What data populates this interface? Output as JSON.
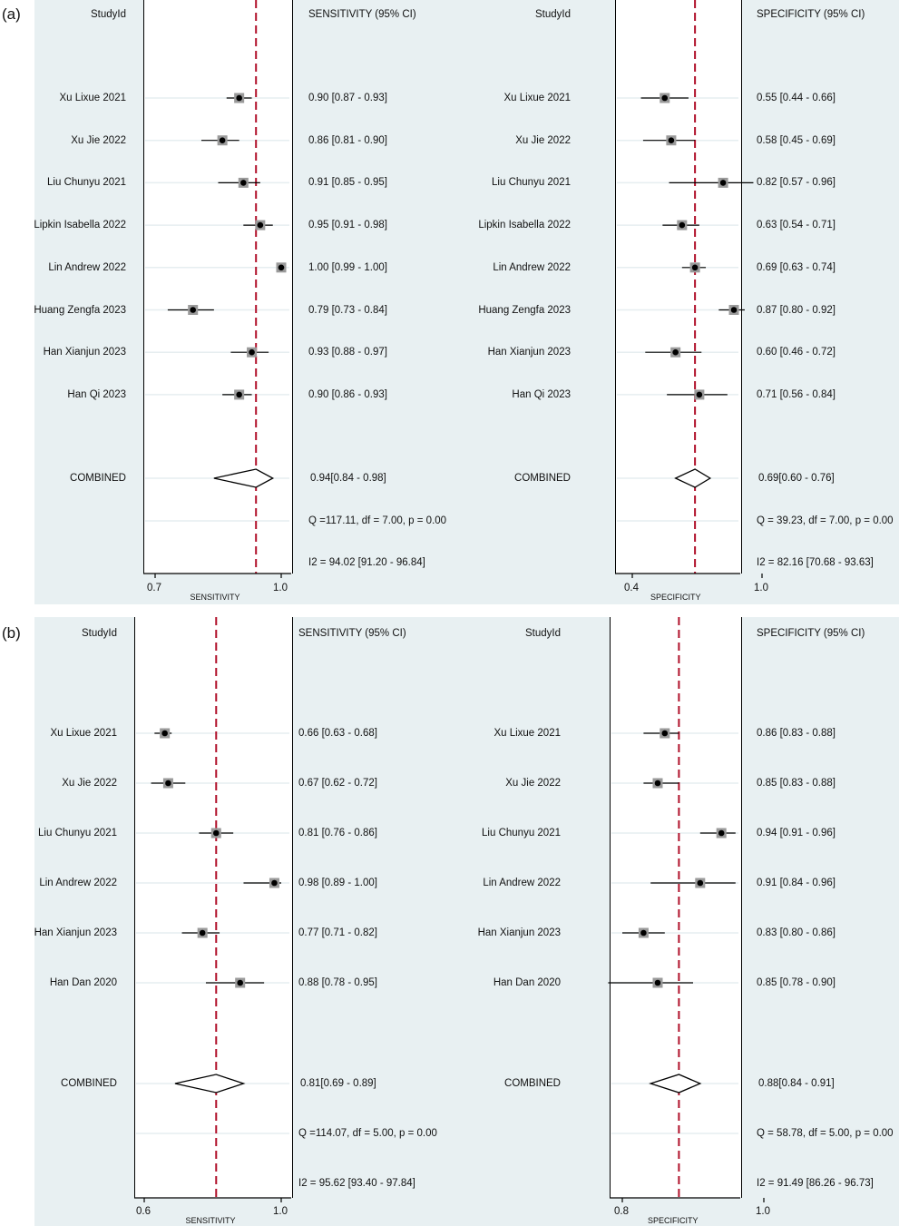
{
  "chart_data": [
    {
      "panel_label": "(a)",
      "type": "forest",
      "studyid_header": "StudyId",
      "plots": [
        {
          "metric_header": "SENSITIVITY (95% CI)",
          "xlabel": "SENSITIVITY",
          "xlim": [
            0.7,
            1.0
          ],
          "ticks": [
            "0.7",
            "1.0"
          ],
          "pooled": 0.94,
          "studies": [
            {
              "name": "Xu Lixue 2021",
              "est": 0.9,
              "lo": 0.87,
              "hi": 0.93,
              "text": "0.90 [0.87 - 0.93]"
            },
            {
              "name": "Xu Jie 2022",
              "est": 0.86,
              "lo": 0.81,
              "hi": 0.9,
              "text": "0.86 [0.81 - 0.90]"
            },
            {
              "name": "Liu Chunyu 2021",
              "est": 0.91,
              "lo": 0.85,
              "hi": 0.95,
              "text": "0.91 [0.85 - 0.95]"
            },
            {
              "name": "Lipkin Isabella 2022",
              "est": 0.95,
              "lo": 0.91,
              "hi": 0.98,
              "text": "0.95 [0.91 - 0.98]"
            },
            {
              "name": "Lin Andrew 2022",
              "est": 1.0,
              "lo": 0.99,
              "hi": 1.0,
              "text": "1.00 [0.99 - 1.00]"
            },
            {
              "name": "Huang Zengfa 2023",
              "est": 0.79,
              "lo": 0.73,
              "hi": 0.84,
              "text": "0.79 [0.73 - 0.84]"
            },
            {
              "name": "Han Xianjun 2023",
              "est": 0.93,
              "lo": 0.88,
              "hi": 0.97,
              "text": "0.93 [0.88 - 0.97]"
            },
            {
              "name": "Han Qi 2023",
              "est": 0.9,
              "lo": 0.86,
              "hi": 0.93,
              "text": "0.90 [0.86 - 0.93]"
            }
          ],
          "combined": {
            "name": "COMBINED",
            "est": 0.94,
            "lo": 0.84,
            "hi": 0.98,
            "text": "0.94[0.84 - 0.98]"
          },
          "q_text": "Q =117.11, df = 7.00, p =  0.00",
          "i2_text": "I2 = 94.02 [91.20 - 96.84]"
        },
        {
          "metric_header": "SPECIFICITY (95% CI)",
          "xlabel": "SPECIFICITY",
          "xlim": [
            0.4,
            1.0
          ],
          "ticks": [
            "0.4",
            "1.0"
          ],
          "pooled": 0.69,
          "studies": [
            {
              "name": "Xu Lixue 2021",
              "est": 0.55,
              "lo": 0.44,
              "hi": 0.66,
              "text": "0.55 [0.44 - 0.66]"
            },
            {
              "name": "Xu Jie 2022",
              "est": 0.58,
              "lo": 0.45,
              "hi": 0.69,
              "text": "0.58 [0.45 - 0.69]"
            },
            {
              "name": "Liu Chunyu 2021",
              "est": 0.82,
              "lo": 0.57,
              "hi": 0.96,
              "text": "0.82 [0.57 - 0.96]"
            },
            {
              "name": "Lipkin Isabella 2022",
              "est": 0.63,
              "lo": 0.54,
              "hi": 0.71,
              "text": "0.63 [0.54 - 0.71]"
            },
            {
              "name": "Lin Andrew 2022",
              "est": 0.69,
              "lo": 0.63,
              "hi": 0.74,
              "text": "0.69 [0.63 - 0.74]"
            },
            {
              "name": "Huang Zengfa 2023",
              "est": 0.87,
              "lo": 0.8,
              "hi": 0.92,
              "text": "0.87 [0.80 - 0.92]"
            },
            {
              "name": "Han Xianjun 2023",
              "est": 0.6,
              "lo": 0.46,
              "hi": 0.72,
              "text": "0.60 [0.46 - 0.72]"
            },
            {
              "name": "Han Qi 2023",
              "est": 0.71,
              "lo": 0.56,
              "hi": 0.84,
              "text": "0.71 [0.56 - 0.84]"
            }
          ],
          "combined": {
            "name": "COMBINED",
            "est": 0.69,
            "lo": 0.6,
            "hi": 0.76,
            "text": "0.69[0.60 - 0.76]"
          },
          "q_text": "Q = 39.23, df = 7.00, p =  0.00",
          "i2_text": "I2 = 82.16 [70.68 - 93.63]"
        }
      ]
    },
    {
      "panel_label": "(b)",
      "type": "forest",
      "studyid_header": "StudyId",
      "plots": [
        {
          "metric_header": "SENSITIVITY (95% CI)",
          "xlabel": "SENSITIVITY",
          "xlim": [
            0.6,
            1.0
          ],
          "ticks": [
            "0.6",
            "1.0"
          ],
          "pooled": 0.81,
          "studies": [
            {
              "name": "Xu Lixue 2021",
              "est": 0.66,
              "lo": 0.63,
              "hi": 0.68,
              "text": "0.66 [0.63 - 0.68]"
            },
            {
              "name": "Xu Jie 2022",
              "est": 0.67,
              "lo": 0.62,
              "hi": 0.72,
              "text": "0.67 [0.62 - 0.72]"
            },
            {
              "name": "Liu Chunyu 2021",
              "est": 0.81,
              "lo": 0.76,
              "hi": 0.86,
              "text": "0.81 [0.76 - 0.86]"
            },
            {
              "name": "Lin Andrew 2022",
              "est": 0.98,
              "lo": 0.89,
              "hi": 1.0,
              "text": "0.98 [0.89 - 1.00]"
            },
            {
              "name": "Han Xianjun 2023",
              "est": 0.77,
              "lo": 0.71,
              "hi": 0.82,
              "text": "0.77 [0.71 - 0.82]"
            },
            {
              "name": "Han Dan 2020",
              "est": 0.88,
              "lo": 0.78,
              "hi": 0.95,
              "text": "0.88 [0.78 - 0.95]"
            }
          ],
          "combined": {
            "name": "COMBINED",
            "est": 0.81,
            "lo": 0.69,
            "hi": 0.89,
            "text": "0.81[0.69 - 0.89]"
          },
          "q_text": "Q =114.07, df = 5.00, p =  0.00",
          "i2_text": "I2 = 95.62 [93.40 - 97.84]"
        },
        {
          "metric_header": "SPECIFICITY (95% CI)",
          "xlabel": "SPECIFICITY",
          "xlim": [
            0.8,
            1.0
          ],
          "ticks": [
            "0.8",
            "1.0"
          ],
          "pooled": 0.88,
          "studies": [
            {
              "name": "Xu Lixue 2021",
              "est": 0.86,
              "lo": 0.83,
              "hi": 0.88,
              "text": "0.86 [0.83 - 0.88]"
            },
            {
              "name": "Xu Jie 2022",
              "est": 0.85,
              "lo": 0.83,
              "hi": 0.88,
              "text": "0.85 [0.83 - 0.88]"
            },
            {
              "name": "Liu Chunyu 2021",
              "est": 0.94,
              "lo": 0.91,
              "hi": 0.96,
              "text": "0.94 [0.91 - 0.96]"
            },
            {
              "name": "Lin Andrew 2022",
              "est": 0.91,
              "lo": 0.84,
              "hi": 0.96,
              "text": "0.91 [0.84 - 0.96]"
            },
            {
              "name": "Han Xianjun 2023",
              "est": 0.83,
              "lo": 0.8,
              "hi": 0.86,
              "text": "0.83 [0.80 - 0.86]"
            },
            {
              "name": "Han Dan 2020",
              "est": 0.85,
              "lo": 0.78,
              "hi": 0.9,
              "text": "0.85 [0.78 - 0.90]"
            }
          ],
          "combined": {
            "name": "COMBINED",
            "est": 0.88,
            "lo": 0.84,
            "hi": 0.91,
            "text": "0.88[0.84 - 0.91]"
          },
          "q_text": "Q = 58.78, df = 5.00, p =  0.00",
          "i2_text": "I2 = 91.49 [86.26 - 96.73]"
        }
      ]
    }
  ]
}
